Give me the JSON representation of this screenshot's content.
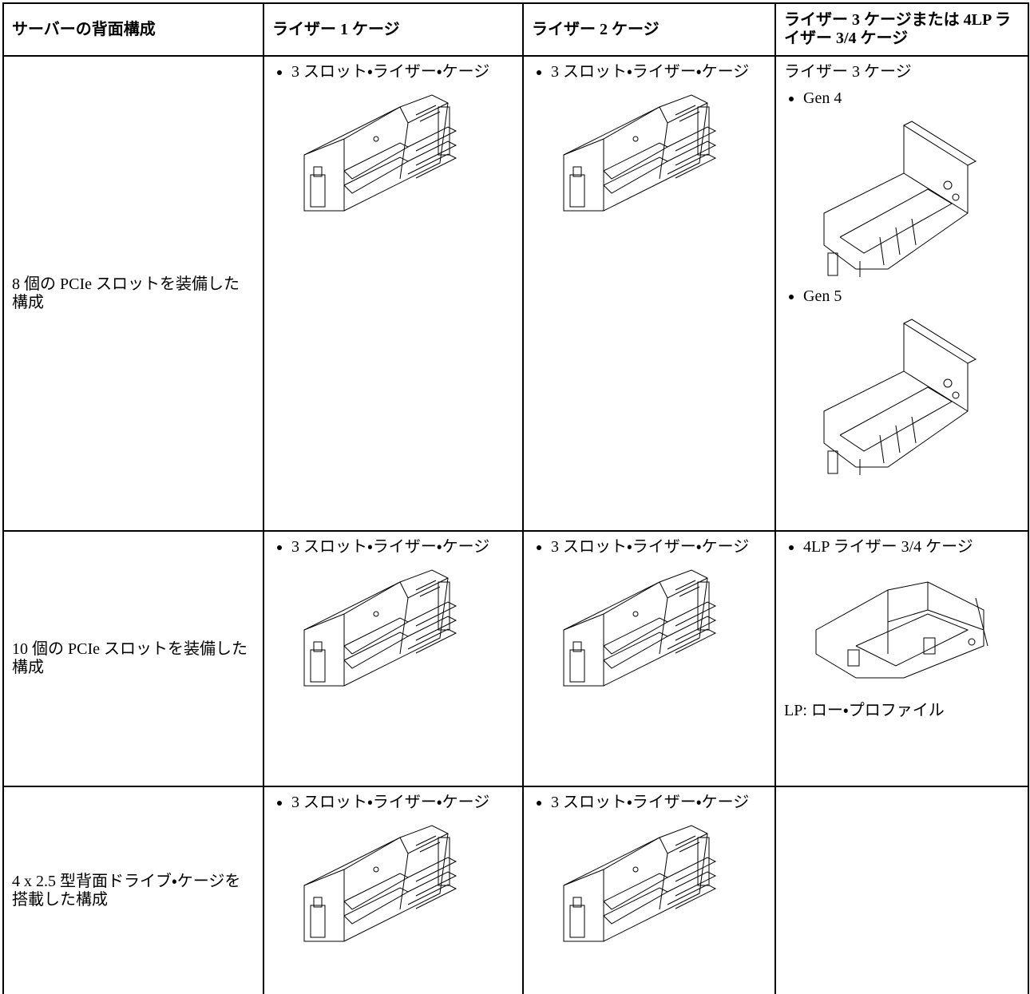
{
  "table": {
    "header": [
      "サーバーの背面構成",
      "ライザー 1 ケージ",
      "ライザー 2 ケージ",
      "ライザー 3 ケージまたは 4LP ライザー 3/4 ケージ"
    ],
    "rows": [
      {
        "label": "8 個の PCIe スロットを装備した構成",
        "cells": [
          {
            "items": [
              "3 スロット・ライザー・ケージ"
            ]
          },
          {
            "items": [
              "3 スロット・ライザー・ケージ"
            ]
          },
          {
            "heading": "ライザー 3 ケージ",
            "items": [
              "Gen 4",
              "Gen 5"
            ]
          }
        ]
      },
      {
        "label": "10 個の PCIe スロットを装備した構成",
        "cells": [
          {
            "items": [
              "3 スロット・ライザー・ケージ"
            ]
          },
          {
            "items": [
              "3 スロット・ライザー・ケージ"
            ]
          },
          {
            "items": [
              "4LP ライザー 3/4 ケージ"
            ],
            "note": "LP: ロー・プロファイル"
          }
        ]
      },
      {
        "label": "4 x 2.5 型背面ドライブ・ケージを搭載した構成",
        "cells": [
          {
            "items": [
              "3 スロット・ライザー・ケージ"
            ]
          },
          {
            "items": [
              "3 スロット・ライザー・ケージ"
            ]
          }
        ]
      }
    ]
  }
}
